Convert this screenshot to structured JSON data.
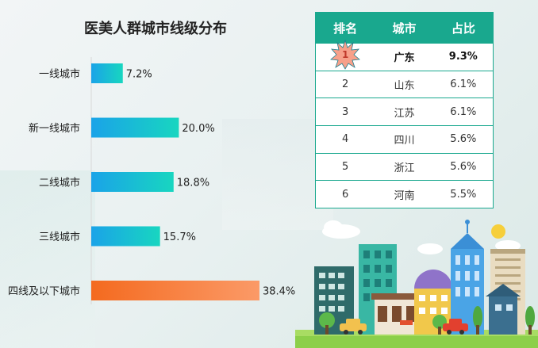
{
  "chart_data": {
    "type": "bar",
    "orientation": "horizontal",
    "title": "医美人群城市线级分布",
    "categories": [
      "一线城市",
      "新一线城市",
      "二线城市",
      "三线城市",
      "四线及以下城市"
    ],
    "values": [
      7.2,
      20.0,
      18.8,
      15.7,
      38.4
    ],
    "value_labels": [
      "7.2%",
      "20.0%",
      "18.8%",
      "15.7%",
      "38.4%"
    ],
    "unit": "%",
    "highlight_index": 4,
    "colors": {
      "gradient_start": "#1aa3e8",
      "gradient_end": "#18d6c0",
      "highlight_start": "#f46a1f",
      "highlight_end": "#fb9a67"
    },
    "grid": false
  },
  "ranking_table": {
    "headers": [
      "排名",
      "城市",
      "占比"
    ],
    "rows": [
      {
        "rank": "1",
        "city": "广东",
        "share": "9.3%"
      },
      {
        "rank": "2",
        "city": "山东",
        "share": "6.1%"
      },
      {
        "rank": "3",
        "city": "江苏",
        "share": "6.1%"
      },
      {
        "rank": "4",
        "city": "四川",
        "share": "5.6%"
      },
      {
        "rank": "5",
        "city": "浙江",
        "share": "5.6%"
      },
      {
        "rank": "6",
        "city": "河南",
        "share": "5.5%"
      }
    ],
    "header_color": "#19a88e"
  },
  "illustration": {
    "icon": "city-skyline-illustration"
  }
}
